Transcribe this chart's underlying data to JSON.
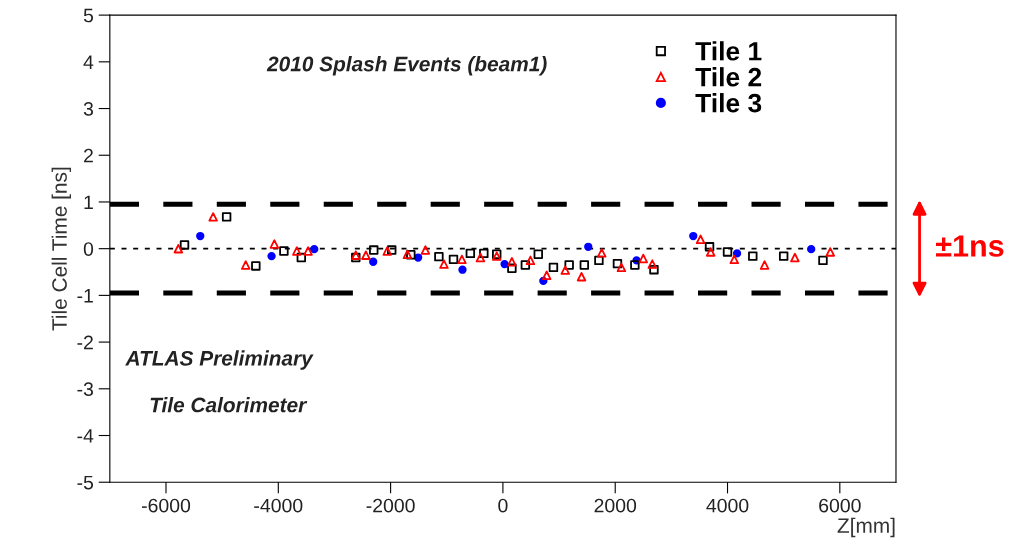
{
  "chart_data": {
    "type": "scatter",
    "xlabel": "Z[mm]",
    "ylabel": "Tile Cell Time [ns]",
    "xlim": [
      -7000,
      7000
    ],
    "xticks": [
      -6000,
      -4000,
      -2000,
      0,
      2000,
      4000,
      6000
    ],
    "ylim": [
      -5,
      5
    ],
    "yticks": [
      -5,
      -4,
      -3,
      -2,
      -1,
      0,
      1,
      2,
      3,
      4,
      5
    ],
    "grid": false,
    "legend": "top right",
    "annotations": [
      "2010 Splash Events (beam1)",
      "ATLAS Preliminary",
      "Tile Calorimeter",
      "±1ns"
    ],
    "ref_lines": [
      {
        "axis": "y",
        "value": 0.95,
        "color": "#000000",
        "line_style": "dashed"
      },
      {
        "axis": "y",
        "value": -0.95,
        "color": "#000000",
        "line_style": "dashed"
      },
      {
        "axis": "y",
        "value": 0,
        "color": "#000000",
        "line_style": "dotted"
      }
    ],
    "series": [
      {
        "name": "Tile 1",
        "color": "#000000",
        "marker": "square",
        "x": [
          -5670,
          -4920,
          -4400,
          -3900,
          -3590,
          -2620,
          -2300,
          -1980,
          -1640,
          -1140,
          -880,
          -580,
          -340,
          -110,
          160,
          400,
          630,
          900,
          1180,
          1450,
          1710,
          2040,
          2350,
          2690,
          3680,
          4000,
          4450,
          5000,
          5700
        ],
        "values": [
          0.08,
          0.68,
          -0.37,
          -0.05,
          -0.19,
          -0.19,
          -0.03,
          -0.03,
          -0.13,
          -0.17,
          -0.23,
          -0.1,
          -0.1,
          -0.12,
          -0.42,
          -0.35,
          -0.12,
          -0.4,
          -0.35,
          -0.35,
          -0.25,
          -0.32,
          -0.35,
          -0.45,
          0.04,
          -0.07,
          -0.16,
          -0.16,
          -0.25
        ]
      },
      {
        "name": "Tile 2",
        "color": "#ff0000",
        "marker": "triangle",
        "x": [
          -5780,
          -5160,
          -4580,
          -4070,
          -3670,
          -3470,
          -2620,
          -2440,
          -2060,
          -1700,
          -1380,
          -1050,
          -730,
          -400,
          -110,
          160,
          490,
          780,
          1110,
          1400,
          1760,
          2110,
          2500,
          2660,
          3520,
          3700,
          4120,
          4660,
          5200,
          5830
        ],
        "values": [
          0.0,
          0.68,
          -0.35,
          0.1,
          -0.05,
          -0.05,
          -0.14,
          -0.14,
          -0.05,
          -0.12,
          -0.03,
          -0.33,
          -0.23,
          -0.19,
          -0.16,
          -0.28,
          -0.25,
          -0.57,
          -0.46,
          -0.6,
          -0.09,
          -0.4,
          -0.21,
          -0.33,
          0.2,
          -0.07,
          -0.23,
          -0.35,
          -0.19,
          -0.07
        ]
      },
      {
        "name": "Tile 3",
        "color": "#0000ff",
        "marker": "circle",
        "x": [
          -5390,
          -4120,
          -3360,
          -2310,
          -1510,
          -720,
          30,
          720,
          1520,
          2380,
          3390,
          4170,
          5490
        ],
        "values": [
          0.27,
          -0.16,
          -0.01,
          -0.28,
          -0.19,
          -0.45,
          -0.33,
          -0.69,
          0.04,
          -0.25,
          0.27,
          -0.1,
          -0.01
        ]
      }
    ]
  }
}
